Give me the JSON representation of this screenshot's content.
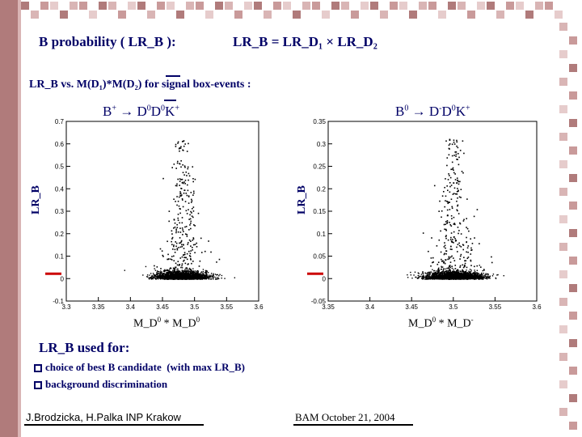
{
  "header": {
    "title_left": "B probability ( LR_B ):",
    "title_right": "LR_B = LR_D₁ × LR_D₂",
    "subtitle": "LR_B  vs. M(D₁)*M(D₂)  for signal box-events :"
  },
  "decays": {
    "left": {
      "parts": [
        "B",
        "+",
        " → D",
        "0",
        "D",
        "0",
        "K",
        "+"
      ]
    },
    "right": {
      "parts": [
        "B",
        "0",
        " → D",
        "-",
        "D",
        "0",
        "K",
        "+"
      ]
    }
  },
  "axes": {
    "ylabel": "LR_B",
    "xlabel_left": {
      "base": "M_D",
      "sup1": "0",
      "mid": " * M_D",
      "sup2": "0"
    },
    "xlabel_right": {
      "base": "M_D",
      "sup1": "0",
      "mid": " * M_D",
      "sup2": "-"
    }
  },
  "chart_data": [
    {
      "type": "scatter",
      "title": "B+ -> D0 D0bar K+",
      "xlabel": "M_D0 * M_D0",
      "ylabel": "LR_B",
      "xlim": [
        3.3,
        3.6
      ],
      "ylim": [
        -0.1,
        0.7
      ],
      "xticks": [
        "3.3",
        "3.35",
        "3.4",
        "3.45",
        "3.5",
        "3.55",
        "3.6"
      ],
      "yticks": [
        "-0.1",
        "0",
        "0.1",
        "0.2",
        "0.3",
        "0.4",
        "0.5",
        "0.6",
        "0.7"
      ],
      "peak_x": 3.48,
      "arrow_y": 0.0
    },
    {
      "type": "scatter",
      "title": "B0 -> D- D0 K+",
      "xlabel": "M_D0 * M_D-",
      "ylabel": "LR_B",
      "xlim": [
        3.35,
        3.6
      ],
      "ylim": [
        -0.05,
        0.35
      ],
      "xticks": [
        "3.35",
        "3.4",
        "3.45",
        "3.5",
        "3.55",
        "3.6"
      ],
      "yticks": [
        "-0.05",
        "0",
        "0.05",
        "0.1",
        "0.15",
        "0.2",
        "0.25",
        "0.3",
        "0.35"
      ],
      "peak_x": 3.5,
      "arrow_y": 0.0
    }
  ],
  "uses": {
    "title": "LR_B used for:",
    "item1_a": "choice of best B candidate",
    "item1_b": "(with max  LR_B)",
    "item2": "background discrimination"
  },
  "footer": {
    "authors": "J.Brodzicka, H.Palka  INP Krakow",
    "event": "BAM   October 21, 2004"
  },
  "colors": {
    "accent": "#000066",
    "arrow": "#cc0000",
    "strip": "#b07b7b"
  }
}
